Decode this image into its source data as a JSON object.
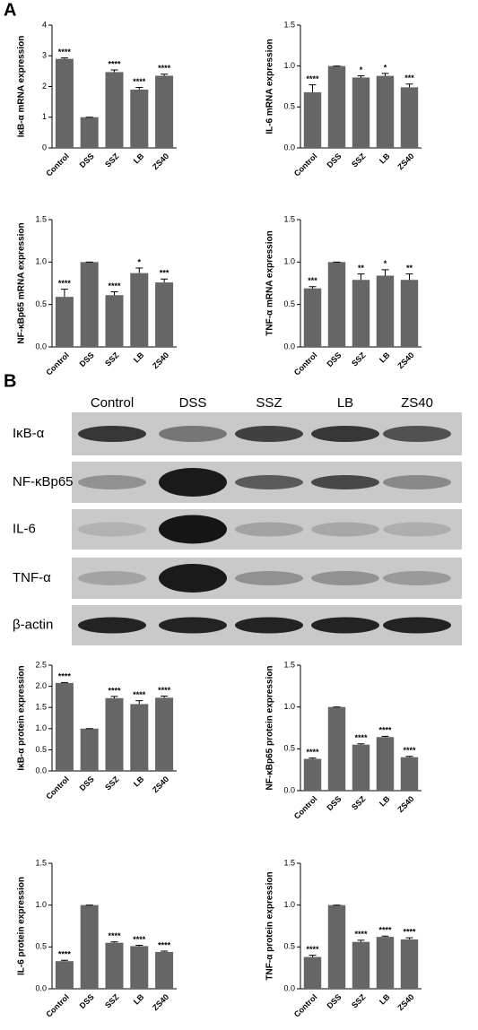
{
  "panel_labels": [
    "A",
    "B"
  ],
  "chart_data": [
    {
      "type": "bar",
      "ylabel": "IκB-α mRNA expression",
      "color": "#666666",
      "categories": [
        "Control",
        "DSS",
        "SSZ",
        "LB",
        "ZS40"
      ],
      "values": [
        2.9,
        1.0,
        2.47,
        1.9,
        2.35
      ],
      "errors": [
        0.03,
        0,
        0.07,
        0.07,
        0.05
      ],
      "annotations": [
        "****",
        null,
        "****",
        "****",
        "****"
      ],
      "ylim": [
        0,
        4
      ],
      "yticks": [
        0,
        1,
        2,
        3,
        4
      ]
    },
    {
      "type": "bar",
      "ylabel": "IL-6 mRNA expression",
      "color": "#666666",
      "categories": [
        "Control",
        "DSS",
        "SSZ",
        "LB",
        "ZS40"
      ],
      "values": [
        0.68,
        1.0,
        0.86,
        0.88,
        0.74
      ],
      "errors": [
        0.09,
        0,
        0.02,
        0.03,
        0.04
      ],
      "annotations": [
        "****",
        null,
        "*",
        "*",
        "***"
      ],
      "ylim": [
        0,
        1.5
      ],
      "yticks": [
        {
          "value": 0,
          "label": "0.0"
        },
        {
          "value": 0.5,
          "label": "0.5"
        },
        {
          "value": 1,
          "label": "1.0"
        },
        {
          "value": 1.5,
          "label": "1.5"
        }
      ]
    },
    {
      "type": "bar",
      "ylabel": "NF-κBp65 mRNA expression",
      "color": "#666666",
      "categories": [
        "Control",
        "DSS",
        "SSZ",
        "LB",
        "ZS40"
      ],
      "values": [
        0.59,
        1.0,
        0.61,
        0.87,
        0.76
      ],
      "errors": [
        0.09,
        0,
        0.04,
        0.06,
        0.04
      ],
      "annotations": [
        "****",
        null,
        "****",
        "*",
        "***"
      ],
      "ylim": [
        0,
        1.5
      ],
      "yticks": [
        {
          "value": 0,
          "label": "0.0"
        },
        {
          "value": 0.5,
          "label": "0.5"
        },
        {
          "value": 1,
          "label": "1.0"
        },
        {
          "value": 1.5,
          "label": "1.5"
        }
      ]
    },
    {
      "type": "bar",
      "ylabel": "TNF-α mRNA expression",
      "color": "#666666",
      "categories": [
        "Control",
        "DSS",
        "SSZ",
        "LB",
        "ZS40"
      ],
      "values": [
        0.69,
        1.0,
        0.79,
        0.84,
        0.79
      ],
      "errors": [
        0.02,
        0,
        0.07,
        0.07,
        0.07
      ],
      "annotations": [
        "***",
        null,
        "**",
        "*",
        "**"
      ],
      "ylim": [
        0,
        1.5
      ],
      "yticks": [
        {
          "value": 0,
          "label": "0.0"
        },
        {
          "value": 0.5,
          "label": "0.5"
        },
        {
          "value": 1,
          "label": "1.0"
        },
        {
          "value": 1.5,
          "label": "1.5"
        }
      ]
    },
    {
      "type": "bar",
      "ylabel": "IκB-α protein expression",
      "color": "#666666",
      "categories": [
        "Control",
        "DSS",
        "SSZ",
        "LB",
        "ZS40"
      ],
      "values": [
        2.08,
        1.0,
        1.72,
        1.58,
        1.73
      ],
      "errors": [
        0.01,
        0,
        0.04,
        0.08,
        0.04
      ],
      "annotations": [
        "****",
        null,
        "****",
        "****",
        "****"
      ],
      "ylim": [
        0,
        2.5
      ],
      "yticks": [
        {
          "value": 0,
          "label": "0.0"
        },
        {
          "value": 0.5,
          "label": "0.5"
        },
        {
          "value": 1,
          "label": "1.0"
        },
        {
          "value": 1.5,
          "label": "1.5"
        },
        {
          "value": 2,
          "label": "2.0"
        },
        {
          "value": 2.5,
          "label": "2.5"
        }
      ]
    },
    {
      "type": "bar",
      "ylabel": "NF-κBp65 protein expression",
      "color": "#666666",
      "categories": [
        "Control",
        "DSS",
        "SSZ",
        "LB",
        "ZS40"
      ],
      "values": [
        0.38,
        1.0,
        0.55,
        0.64,
        0.4
      ],
      "errors": [
        0.01,
        0,
        0.01,
        0.01,
        0.01
      ],
      "annotations": [
        "****",
        null,
        "****",
        "****",
        "****"
      ],
      "ylim": [
        0,
        1.5
      ],
      "yticks": [
        {
          "value": 0,
          "label": "0.0"
        },
        {
          "value": 0.5,
          "label": "0.5"
        },
        {
          "value": 1,
          "label": "1.0"
        },
        {
          "value": 1.5,
          "label": "1.5"
        }
      ]
    },
    {
      "type": "bar",
      "ylabel": "IL-6 protein expression",
      "color": "#666666",
      "categories": [
        "Control",
        "DSS",
        "SSZ",
        "LB",
        "ZS40"
      ],
      "values": [
        0.33,
        1.0,
        0.55,
        0.51,
        0.44
      ],
      "errors": [
        0.01,
        0,
        0.01,
        0.01,
        0.01
      ],
      "annotations": [
        "****",
        null,
        "****",
        "****",
        "****"
      ],
      "ylim": [
        0,
        1.5
      ],
      "yticks": [
        {
          "value": 0,
          "label": "0.0"
        },
        {
          "value": 0.5,
          "label": "0.5"
        },
        {
          "value": 1,
          "label": "1.0"
        },
        {
          "value": 1.5,
          "label": "1.5"
        }
      ]
    },
    {
      "type": "bar",
      "ylabel": "TNF-α protein expression",
      "color": "#666666",
      "categories": [
        "Control",
        "DSS",
        "SSZ",
        "LB",
        "ZS40"
      ],
      "values": [
        0.38,
        1.0,
        0.56,
        0.62,
        0.59
      ],
      "errors": [
        0.02,
        0,
        0.02,
        0.01,
        0.02
      ],
      "annotations": [
        "****",
        null,
        "****",
        "****",
        "****"
      ],
      "ylim": [
        0,
        1.5
      ],
      "yticks": [
        {
          "value": 0,
          "label": "0.0"
        },
        {
          "value": 0.5,
          "label": "0.5"
        },
        {
          "value": 1,
          "label": "1.0"
        },
        {
          "value": 1.5,
          "label": "1.5"
        }
      ]
    }
  ],
  "blot": {
    "lanes": [
      "Control",
      "DSS",
      "SSZ",
      "LB",
      "ZS40"
    ],
    "rows": [
      "IκB-α",
      "NF-κBp65",
      "IL-6",
      "TNF-α",
      "β-actin"
    ]
  }
}
